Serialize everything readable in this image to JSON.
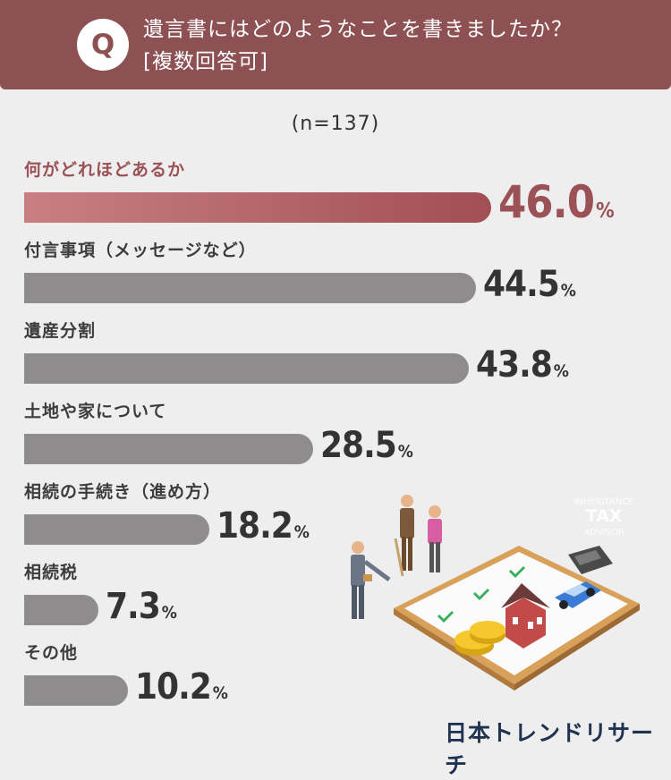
{
  "header": {
    "q_badge": "Q",
    "question": "遺言書にはどのようなことを書きましたか？",
    "note": "[複数回答可]"
  },
  "sample": "(n=137)",
  "chart_data": {
    "type": "bar",
    "orientation": "horizontal",
    "title": "遺言書にはどのようなことを書きましたか？",
    "unit": "%",
    "categories": [
      "何がどれほどあるか",
      "付言事項（メッセージなど）",
      "遺産分割",
      "土地や家について",
      "相続の手続き（進め方）",
      "相続税",
      "その他"
    ],
    "values": [
      46.0,
      44.5,
      43.8,
      28.5,
      18.2,
      7.3,
      10.2
    ],
    "value_labels": [
      "46.0",
      "44.5",
      "43.8",
      "28.5",
      "18.2",
      "7.3",
      "10.2"
    ],
    "highlight_index": 0,
    "xlim": [
      0,
      100
    ],
    "grid": false,
    "legend": "none"
  },
  "illustration": {
    "sign_lines": [
      "INHERITANCE",
      "TAX",
      "ADVISOR"
    ]
  },
  "brand": "日本トレンドリサーチ",
  "colors": {
    "header": "#8e5153",
    "highlight": "#9b5257",
    "bar": "#8e8c8d",
    "background": "#efeeee",
    "brand": "#1f3250"
  }
}
